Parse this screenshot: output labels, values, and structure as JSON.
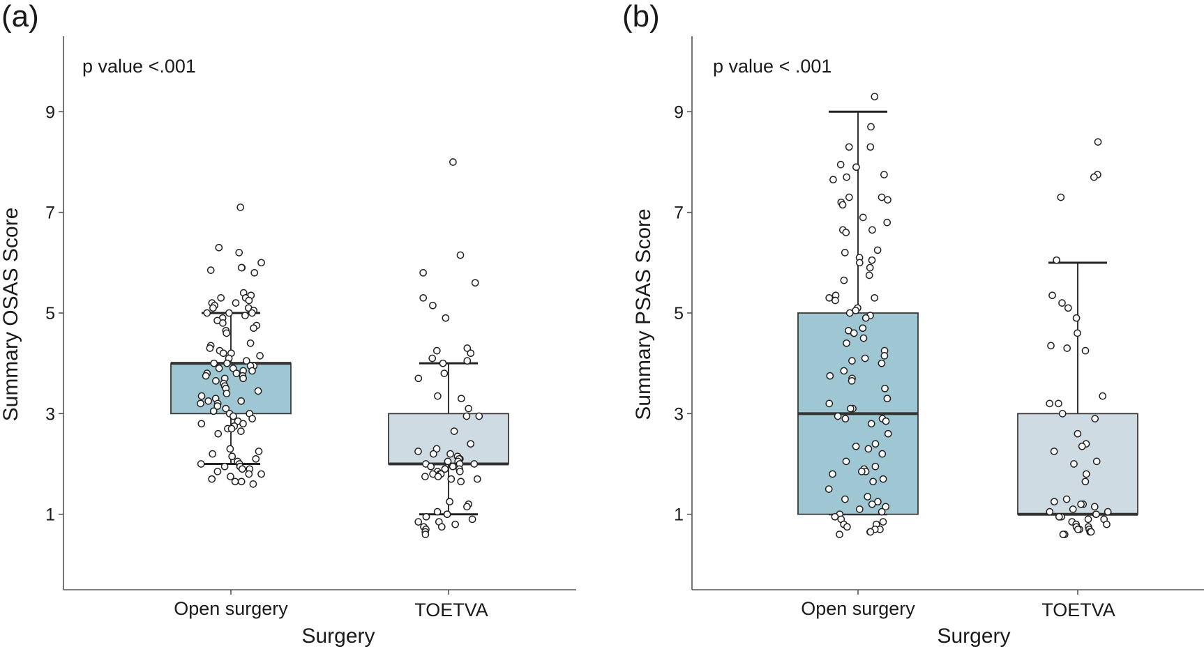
{
  "figure": {
    "background": "#ffffff",
    "open_color": "#9ec6d3",
    "toetva_color": "#cfdbe2"
  },
  "chart_data": [
    {
      "type": "box",
      "panel_label": "(a)",
      "annotation": "p value <.001",
      "xlabel": "Surgery",
      "ylabel": "Summary OSAS Score",
      "categories": [
        "Open surgery",
        "TOETVA"
      ],
      "ylim": [
        -0.5,
        10.5
      ],
      "yticks": [
        1,
        3,
        5,
        7,
        9
      ],
      "groups": [
        {
          "name": "Open surgery",
          "whisker_low": 2,
          "q1": 3,
          "median": 4,
          "q3": 4,
          "whisker_high": 5,
          "color": "#9ec6d3",
          "points": [
            7.1,
            6.3,
            6.2,
            6.0,
            5.9,
            5.9,
            5.85,
            5.8,
            5.4,
            5.35,
            5.3,
            5.3,
            5.25,
            5.2,
            5.2,
            5.15,
            5.1,
            5.1,
            5.05,
            5.0,
            5.0,
            5.0,
            4.95,
            4.9,
            4.85,
            4.8,
            4.75,
            4.7,
            4.65,
            4.6,
            4.4,
            4.35,
            4.3,
            4.25,
            4.2,
            4.2,
            4.15,
            4.1,
            4.05,
            4.0,
            4.0,
            3.95,
            3.95,
            3.9,
            3.9,
            3.85,
            3.85,
            3.8,
            3.8,
            3.75,
            3.75,
            3.7,
            3.7,
            3.65,
            3.6,
            3.55,
            3.5,
            3.45,
            3.4,
            3.35,
            3.3,
            3.25,
            3.25,
            3.2,
            3.2,
            3.15,
            3.1,
            3.05,
            3.0,
            3.0,
            2.95,
            2.9,
            2.85,
            2.8,
            2.8,
            2.75,
            2.7,
            2.7,
            2.65,
            2.6,
            2.3,
            2.25,
            2.2,
            2.15,
            2.1,
            2.05,
            2.0,
            2.0,
            1.95,
            1.95,
            1.9,
            1.9,
            1.85,
            1.8,
            1.8,
            1.75,
            1.7,
            1.65,
            1.65,
            1.6
          ]
        },
        {
          "name": "TOETVA",
          "whisker_low": 1,
          "q1": 2,
          "median": 2,
          "q3": 3,
          "whisker_high": 4,
          "color": "#cfdbe2",
          "points": [
            8.0,
            6.15,
            5.8,
            5.6,
            5.3,
            5.15,
            4.9,
            4.3,
            4.25,
            4.2,
            4.1,
            4.05,
            4.0,
            3.8,
            3.7,
            3.35,
            3.3,
            3.1,
            2.95,
            2.95,
            2.65,
            2.4,
            2.3,
            2.25,
            2.2,
            2.2,
            2.15,
            2.1,
            2.1,
            2.05,
            2.05,
            2.0,
            2.0,
            2.0,
            1.95,
            1.95,
            1.9,
            1.9,
            1.85,
            1.85,
            1.8,
            1.8,
            1.8,
            1.75,
            1.75,
            1.7,
            1.7,
            1.65,
            1.25,
            1.2,
            1.15,
            1.05,
            1.0,
            1.0,
            0.95,
            0.9,
            0.85,
            0.85,
            0.8,
            0.75,
            0.75,
            0.7,
            0.65,
            0.6
          ]
        }
      ]
    },
    {
      "type": "box",
      "panel_label": "(b)",
      "annotation": "p value < .001",
      "xlabel": "Surgery",
      "ylabel": "Summary PSAS Score",
      "categories": [
        "Open surgery",
        "TOETVA"
      ],
      "ylim": [
        -0.5,
        10.5
      ],
      "yticks": [
        1,
        3,
        5,
        7,
        9
      ],
      "groups": [
        {
          "name": "Open surgery",
          "whisker_low": 1,
          "q1": 1,
          "median": 3,
          "q3": 5,
          "whisker_high": 9,
          "color": "#9ec6d3",
          "points": [
            9.3,
            8.7,
            8.3,
            8.3,
            7.95,
            7.9,
            7.75,
            7.7,
            7.65,
            7.3,
            7.3,
            7.25,
            7.2,
            7.15,
            6.9,
            6.8,
            6.65,
            6.65,
            6.6,
            6.25,
            6.2,
            6.1,
            6.05,
            6.0,
            5.9,
            5.75,
            5.65,
            5.35,
            5.3,
            5.3,
            5.25,
            5.1,
            5.05,
            5.0,
            4.95,
            4.9,
            4.7,
            4.65,
            4.6,
            4.6,
            4.5,
            4.4,
            4.25,
            4.15,
            4.1,
            4.05,
            4.0,
            3.85,
            3.75,
            3.7,
            3.65,
            3.5,
            3.3,
            3.2,
            3.1,
            3.1,
            2.95,
            2.9,
            2.9,
            2.85,
            2.8,
            2.6,
            2.4,
            2.35,
            2.3,
            2.2,
            2.05,
            1.95,
            1.9,
            1.85,
            1.85,
            1.8,
            1.7,
            1.65,
            1.5,
            1.35,
            1.3,
            1.25,
            1.2,
            1.15,
            1.1,
            1.05,
            1.0,
            0.95,
            0.9,
            0.85,
            0.8,
            0.8,
            0.75,
            0.7,
            0.7,
            0.65,
            0.65,
            0.6
          ]
        },
        {
          "name": "TOETVA",
          "whisker_low": 1,
          "q1": 1,
          "median": 1,
          "q3": 3,
          "whisker_high": 6,
          "color": "#cfdbe2",
          "points": [
            8.4,
            7.75,
            7.7,
            7.3,
            6.05,
            5.35,
            5.2,
            5.1,
            4.9,
            4.6,
            4.35,
            4.3,
            4.25,
            3.35,
            3.2,
            3.2,
            3.0,
            2.9,
            2.6,
            2.4,
            2.35,
            2.25,
            2.05,
            2.0,
            1.8,
            1.65,
            1.3,
            1.25,
            1.2,
            1.2,
            1.15,
            1.1,
            1.05,
            1.05,
            1.0,
            1.0,
            0.95,
            0.95,
            0.9,
            0.9,
            0.85,
            0.8,
            0.8,
            0.75,
            0.75,
            0.7,
            0.7,
            0.7,
            0.65,
            0.65,
            0.6,
            0.6
          ]
        }
      ]
    }
  ]
}
